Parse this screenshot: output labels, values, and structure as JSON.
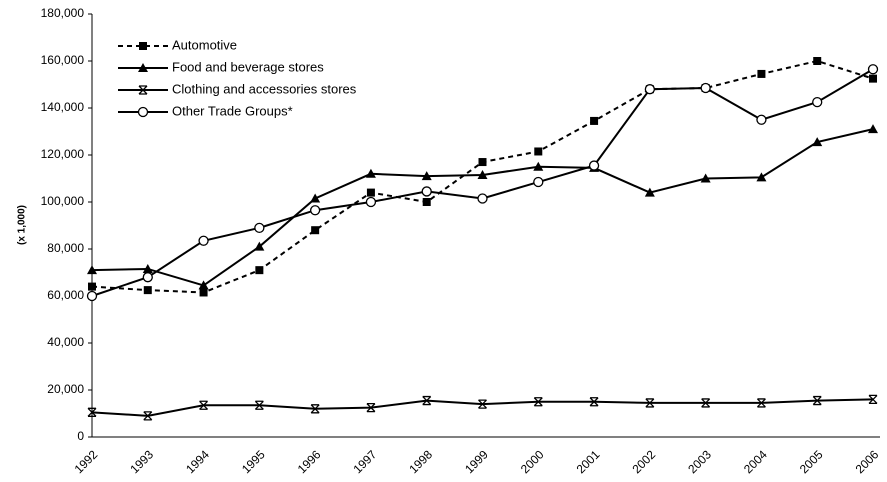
{
  "chart_data": {
    "type": "line",
    "y_label": "(x 1,000)",
    "categories": [
      "1992",
      "1993",
      "1994",
      "1995",
      "1996",
      "1997",
      "1998",
      "1999",
      "2000",
      "2001",
      "2002",
      "2003",
      "2004",
      "2005",
      "2006"
    ],
    "series": [
      {
        "name": "Automotive",
        "color": "#000000",
        "dash": true,
        "marker": "square",
        "values": [
          64000,
          62500,
          61500,
          71000,
          88000,
          104000,
          100000,
          117000,
          121500,
          134500,
          148000,
          148500,
          154500,
          160000,
          152500
        ]
      },
      {
        "name": "Food and beverage stores",
        "color": "#000000",
        "dash": false,
        "marker": "triangle",
        "values": [
          71000,
          71500,
          64500,
          81000,
          101500,
          112000,
          111000,
          111500,
          115000,
          114500,
          104000,
          110000,
          110500,
          125500,
          131000
        ]
      },
      {
        "name": "Clothing and accessories stores",
        "color": "#000000",
        "dash": false,
        "marker": "cross",
        "values": [
          10500,
          9000,
          13500,
          13500,
          12000,
          12500,
          15500,
          14000,
          15000,
          15000,
          14500,
          14500,
          14500,
          15500,
          16000
        ]
      },
      {
        "name": "Other Trade Groups*",
        "color": "#000000",
        "dash": false,
        "marker": "circle",
        "values": [
          60000,
          68000,
          83500,
          89000,
          96500,
          100000,
          104500,
          101500,
          108500,
          115500,
          148000,
          148500,
          135000,
          142500,
          156500
        ]
      }
    ],
    "ylim": [
      0,
      180000
    ],
    "yticks": [
      0,
      {
        "value": 20000,
        "label": "20,000"
      },
      {
        "value": 40000,
        "label": "40,000"
      },
      {
        "value": 60000,
        "label": "60,000"
      },
      {
        "value": 80000,
        "label": "80,000"
      },
      {
        "value": 100000,
        "label": "100,000"
      },
      {
        "value": 120000,
        "label": "120,000"
      },
      {
        "value": 140000,
        "label": "140,000"
      },
      {
        "value": 160000,
        "label": "160,000"
      },
      {
        "value": 180000,
        "label": "180,000"
      }
    ],
    "grid": false,
    "legend": "top-left"
  }
}
